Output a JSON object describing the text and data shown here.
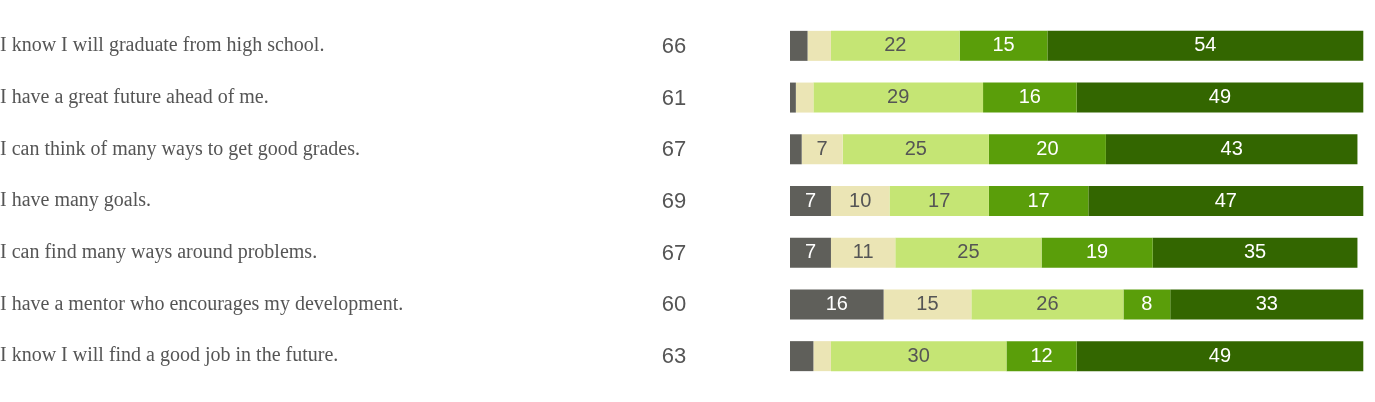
{
  "chart_data": {
    "type": "bar",
    "orientation": "horizontal",
    "stacked": true,
    "tick_labels": "y",
    "grid": false,
    "legend": false,
    "categories": [
      "I know I will graduate from high school.",
      "I have a great future ahead of me.",
      "I can think of many ways to get good grades.",
      "I have many goals.",
      "I can find many ways around problems.",
      "I have a mentor who encourages my development.",
      "I know I will find a good job in the future."
    ],
    "series": [
      {
        "color": "#5f5f5a",
        "values": [
          3,
          1,
          2,
          7,
          7,
          16,
          4
        ],
        "value_labels": [
          null,
          null,
          null,
          "7",
          "7",
          "16",
          null
        ]
      },
      {
        "color": "#ebe5b5",
        "values": [
          4,
          3,
          7,
          10,
          11,
          15,
          3
        ],
        "value_labels": [
          null,
          null,
          "7",
          "10",
          "11",
          "15",
          null
        ]
      },
      {
        "color": "#c5e574",
        "values": [
          22,
          29,
          25,
          17,
          25,
          26,
          30
        ],
        "value_labels": [
          "22",
          "29",
          "25",
          "17",
          "25",
          "26",
          "30"
        ]
      },
      {
        "color": "#5a9e0a",
        "values": [
          15,
          16,
          20,
          17,
          19,
          8,
          12
        ],
        "value_labels": [
          "15",
          "16",
          "20",
          "17",
          "19",
          "8",
          "12"
        ]
      },
      {
        "color": "#336600",
        "values": [
          54,
          49,
          43,
          47,
          35,
          33,
          49
        ],
        "value_labels": [
          "54",
          "49",
          "43",
          "47",
          "35",
          "33",
          "49"
        ]
      }
    ],
    "annotations": [
      "66",
      "61",
      "67",
      "69",
      "67",
      "60",
      "63"
    ]
  }
}
